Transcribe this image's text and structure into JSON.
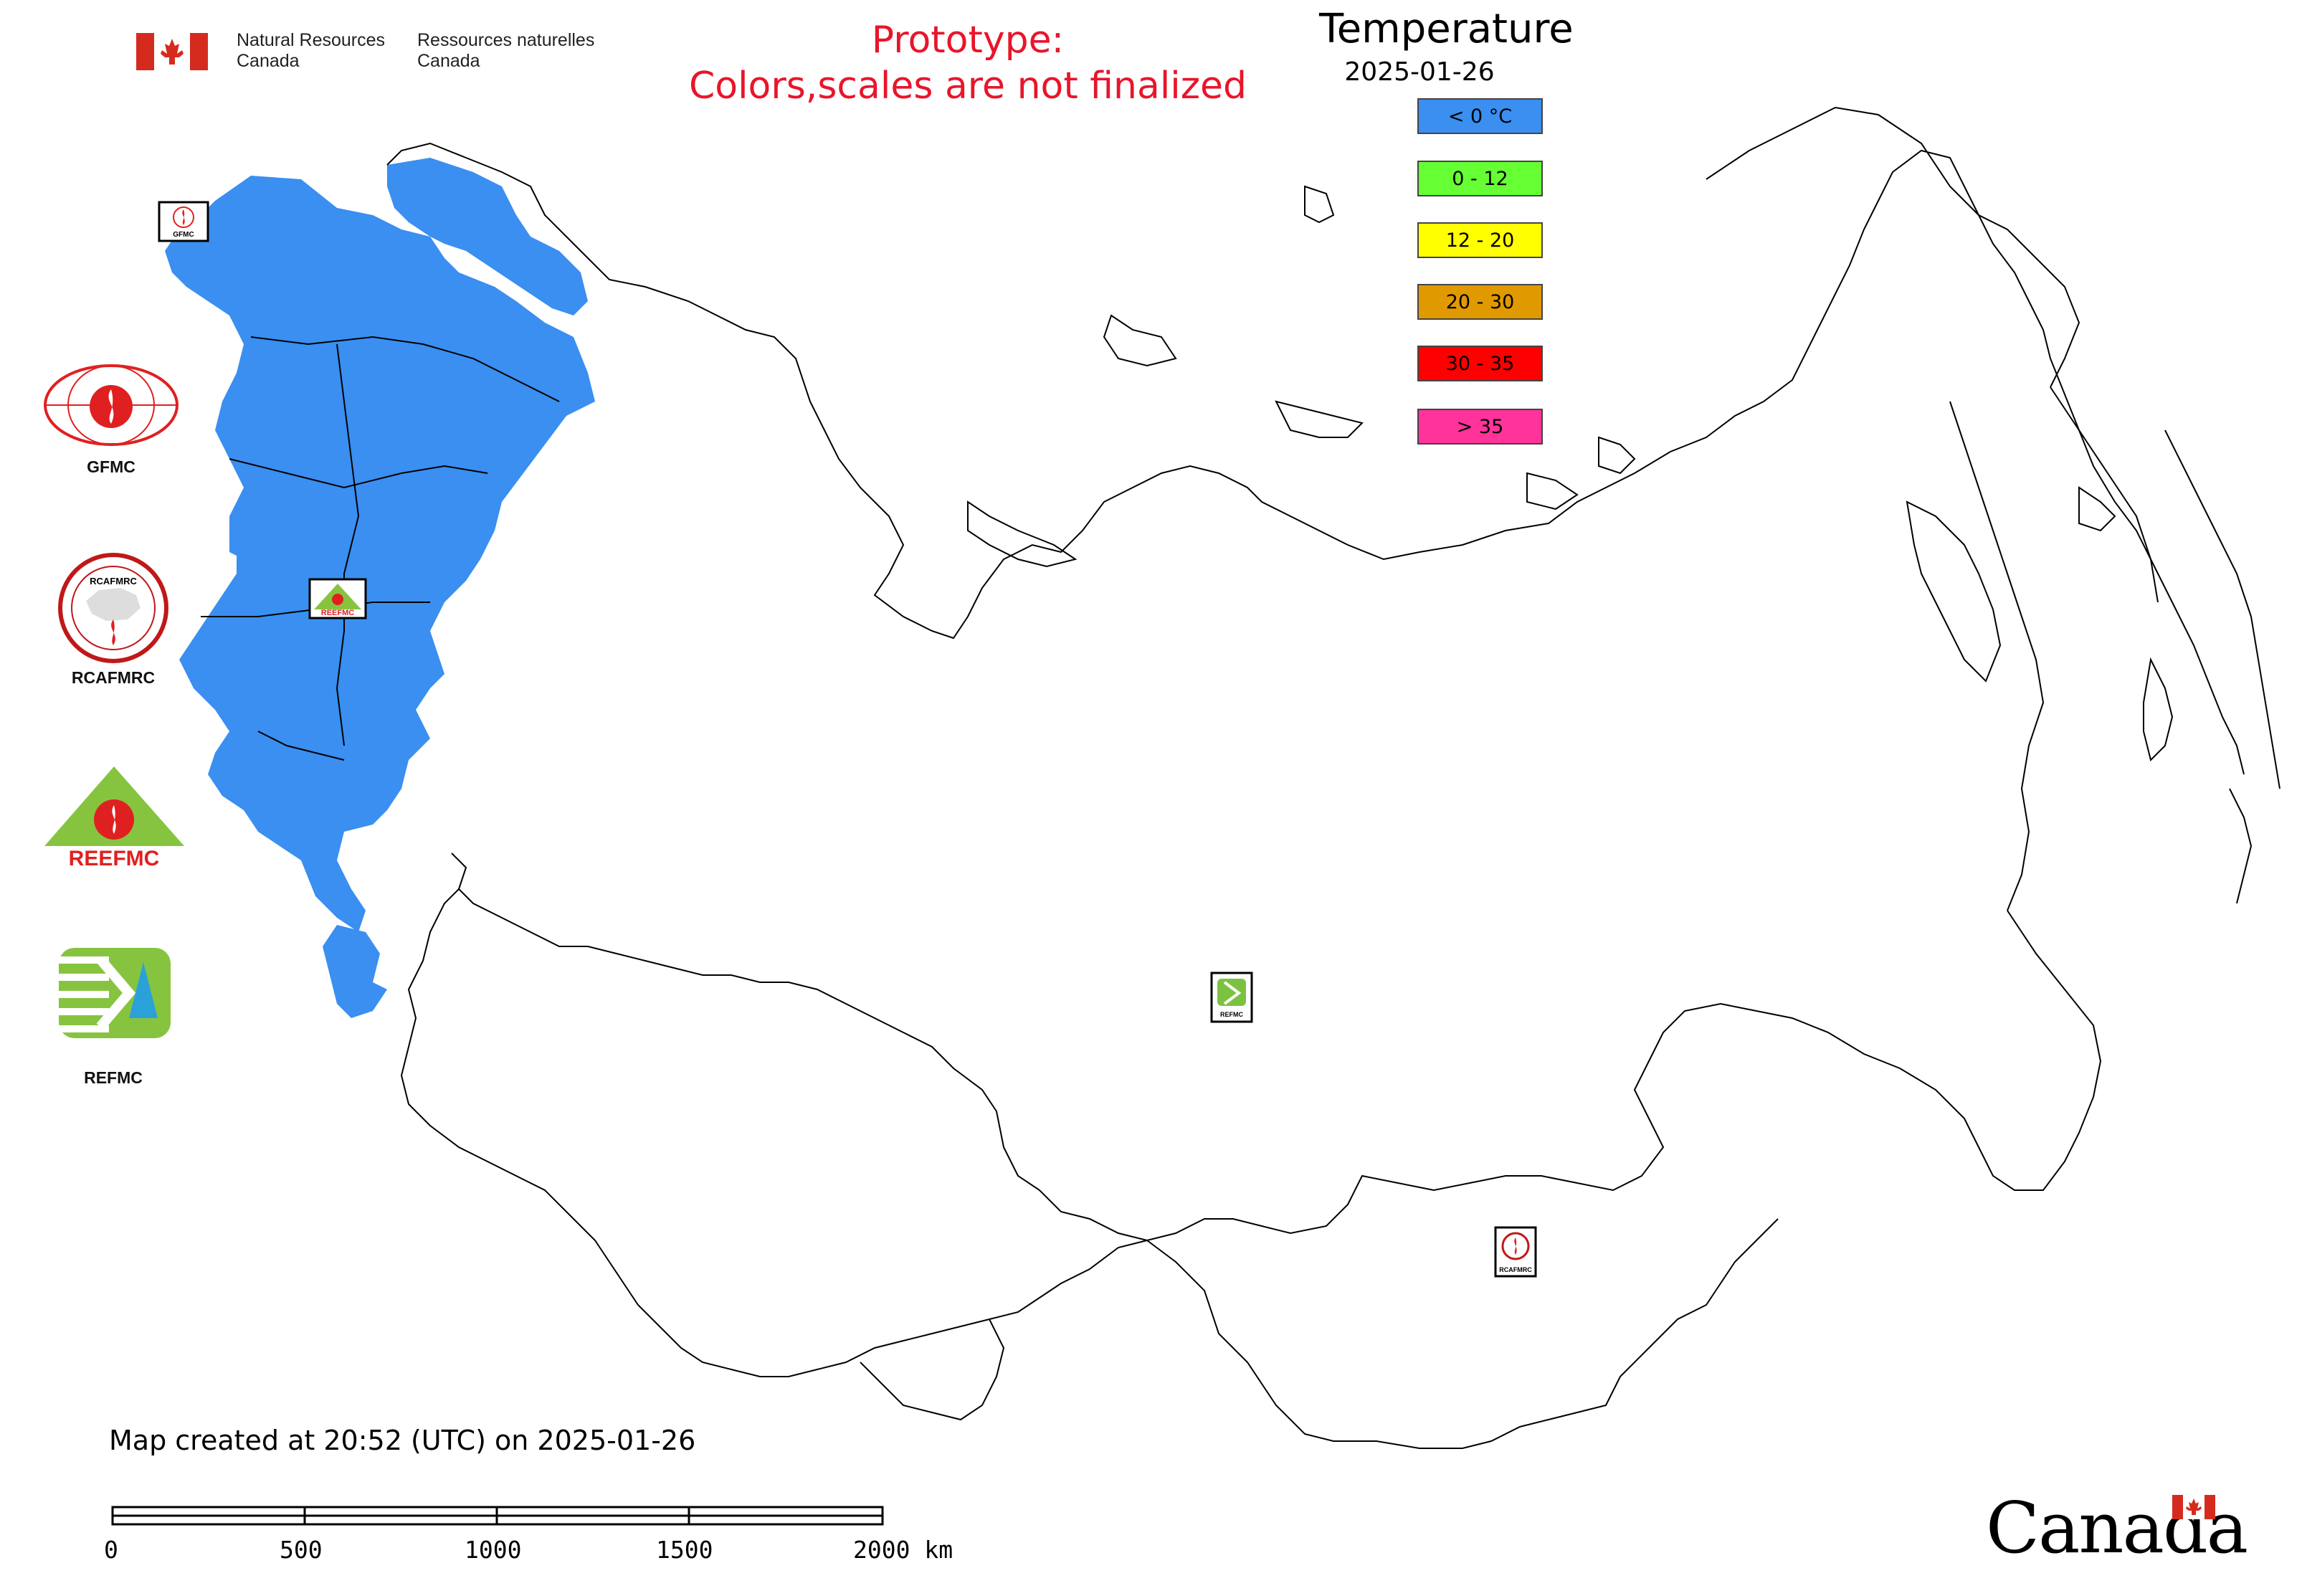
{
  "header": {
    "gov_en_line1": "Natural Resources",
    "gov_en_line2": "Canada",
    "gov_fr_line1": "Ressources naturelles",
    "gov_fr_line2": "Canada",
    "prototype_line1": "Prototype:",
    "prototype_line2": "Colors,scales are not finalized"
  },
  "legend": {
    "title": "Temperature",
    "date": "2025-01-26",
    "items": [
      {
        "label": "< 0 °C",
        "color": "#3a8ff0"
      },
      {
        "label": "0 - 12",
        "color": "#66ff33"
      },
      {
        "label": "12 - 20",
        "color": "#ffff00"
      },
      {
        "label": "20 - 30",
        "color": "#e09a00"
      },
      {
        "label": "30 - 35",
        "color": "#ff0000"
      },
      {
        "label": "> 35",
        "color": "#ff3399"
      }
    ]
  },
  "logos": [
    {
      "name": "GFMC",
      "label": "GFMC",
      "icon": "gfmc-icon"
    },
    {
      "name": "RCAFMRC",
      "label": "RCAFMRC",
      "icon": "rcafmrc-icon"
    },
    {
      "name": "REEFMC",
      "label": "",
      "logo_text": "REEFMC",
      "icon": "reefmc-icon"
    },
    {
      "name": "REFMC",
      "label": "REFMC",
      "icon": "refmc-icon"
    }
  ],
  "map_markers": [
    {
      "name": "gfmc-marker",
      "label": "GFMC"
    },
    {
      "name": "reefmc-marker",
      "label": "REEFMC"
    },
    {
      "name": "refmc-marker",
      "label": "REFMC"
    },
    {
      "name": "rcafmrc-marker",
      "label": "RCAFMRC"
    }
  ],
  "footer": {
    "timestamp": "Map created at 20:52 (UTC) on 2025-01-26",
    "scale_labels": [
      "0",
      "500",
      "1000",
      "1500",
      "2000 km"
    ],
    "canada_wordmark": "Canada"
  },
  "colors": {
    "cold_fill": "#3a8ff0",
    "title_red": "#e8152b",
    "flag_red": "#d52b1e"
  }
}
